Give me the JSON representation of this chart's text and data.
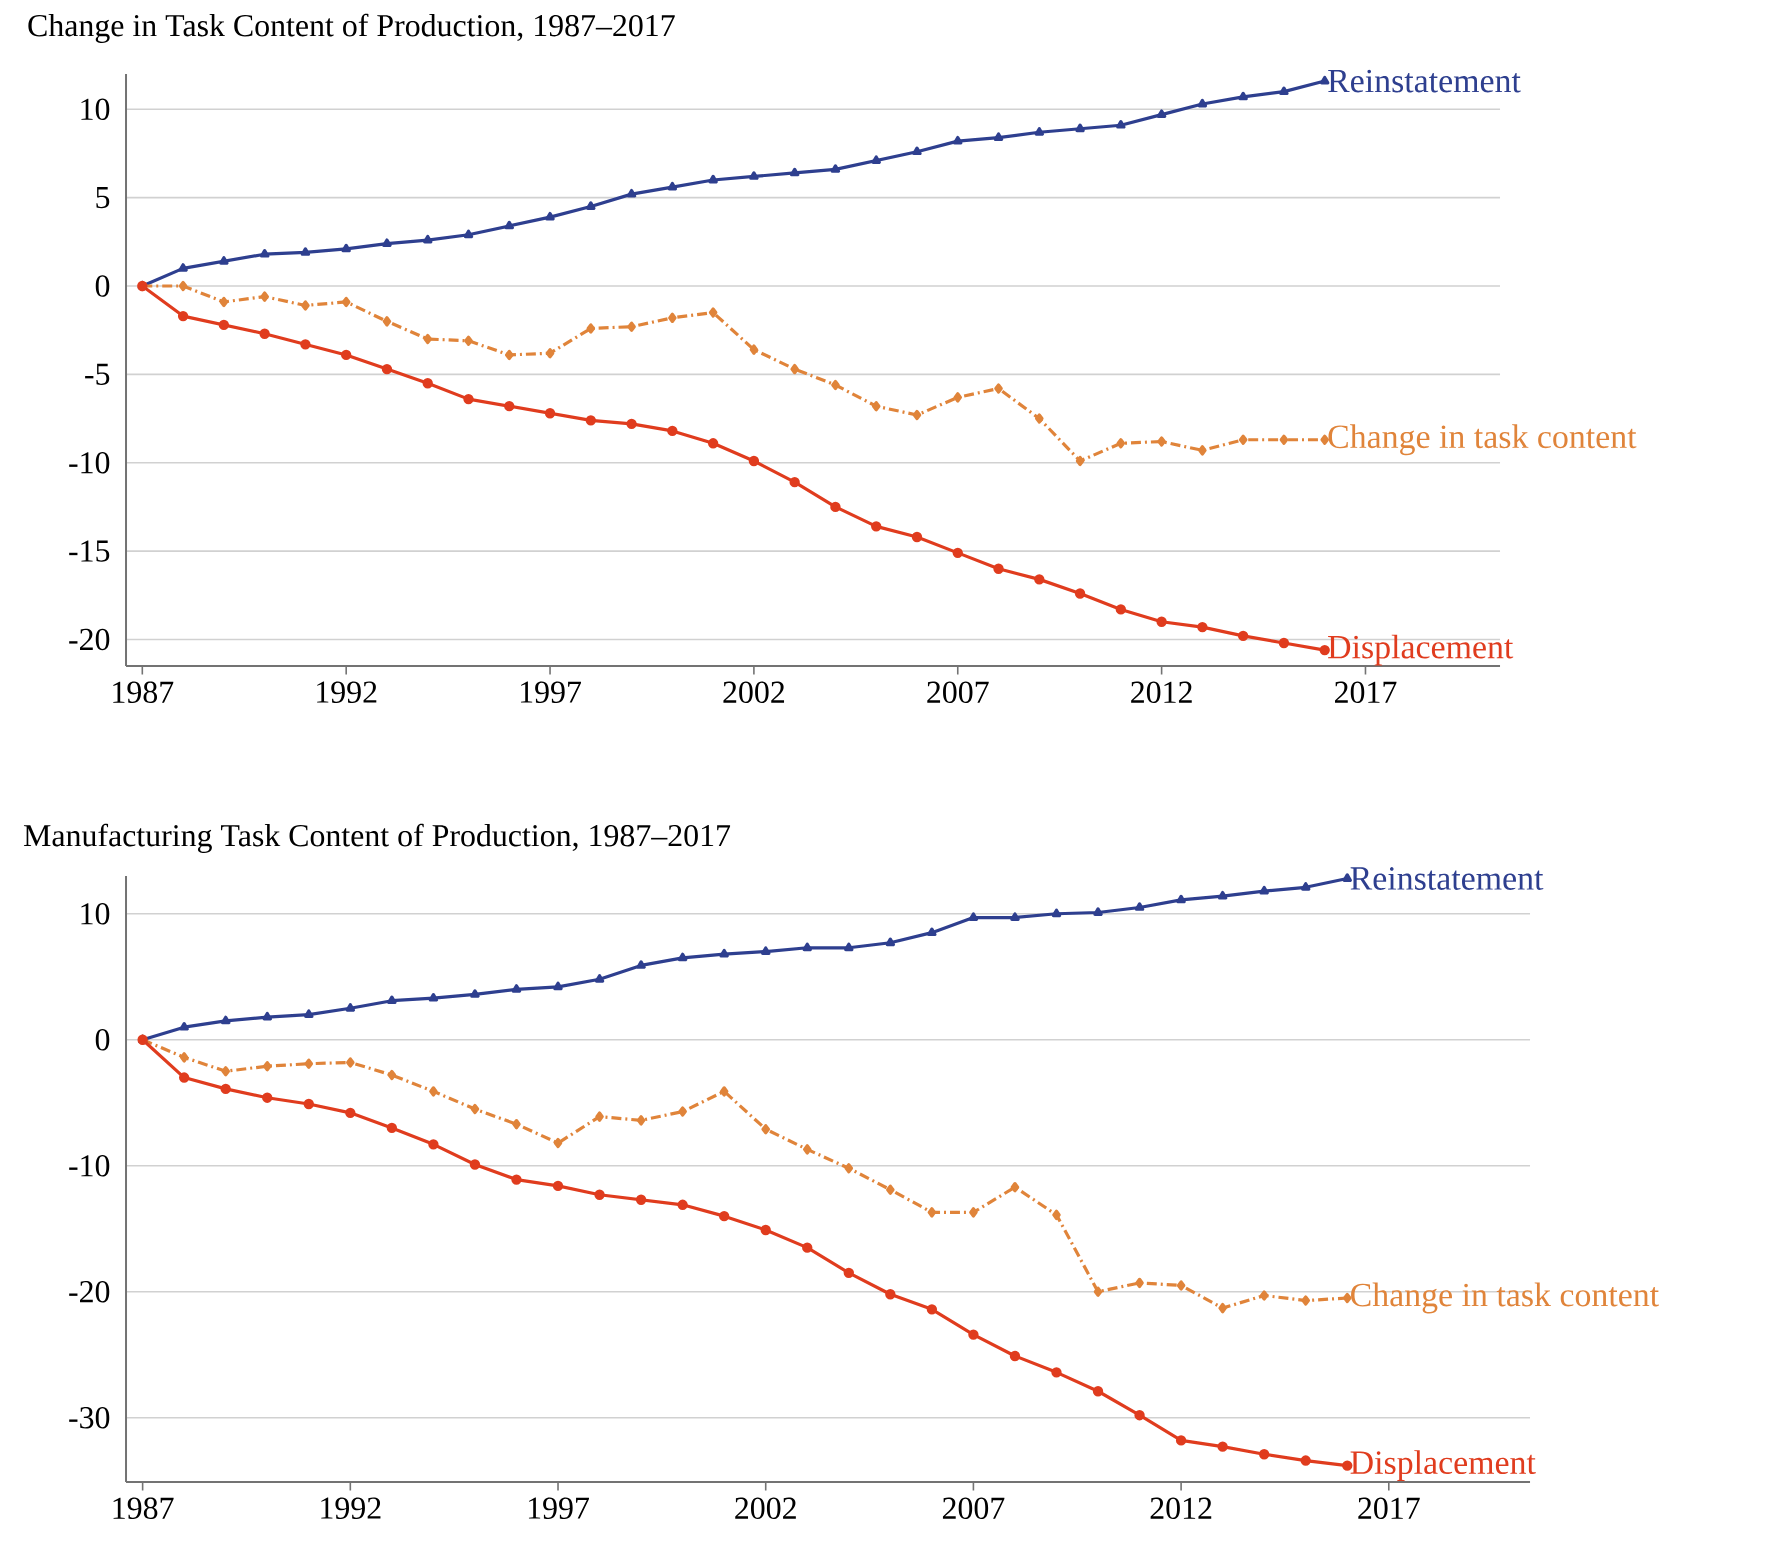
{
  "chart_data": [
    {
      "type": "line",
      "title": "Change in Task Content of Production, 1987–2017",
      "x": [
        1987,
        1988,
        1989,
        1990,
        1991,
        1992,
        1993,
        1994,
        1995,
        1996,
        1997,
        1998,
        1999,
        2000,
        2001,
        2002,
        2003,
        2004,
        2005,
        2006,
        2007,
        2008,
        2009,
        2010,
        2011,
        2012,
        2013,
        2014,
        2015,
        2016
      ],
      "xlim": [
        1986.6,
        2020.3
      ],
      "ylim": [
        -21.5,
        12
      ],
      "xticks": [
        1987,
        1992,
        1997,
        2002,
        2007,
        2012,
        2017
      ],
      "yticks": [
        -20,
        -15,
        -10,
        -5,
        0,
        5,
        10
      ],
      "grid": "y",
      "series": [
        {
          "name": "Reinstatement",
          "color": "#2e3f8f",
          "marker": "triangle",
          "line_style": "solid",
          "values": [
            0,
            1.0,
            1.4,
            1.8,
            1.9,
            2.1,
            2.4,
            2.6,
            2.9,
            3.4,
            3.9,
            4.5,
            5.2,
            5.6,
            6.0,
            6.2,
            6.4,
            6.6,
            7.1,
            7.6,
            8.2,
            8.4,
            8.7,
            8.9,
            9.1,
            9.7,
            10.3,
            10.7,
            11.0,
            11.6
          ]
        },
        {
          "name": "Change in task content",
          "color": "#e0843a",
          "marker": "diamond",
          "line_style": "dashed",
          "values": [
            0,
            0,
            -0.9,
            -0.6,
            -1.1,
            -0.9,
            -2.0,
            -3.0,
            -3.1,
            -3.9,
            -3.8,
            -2.4,
            -2.3,
            -1.8,
            -1.5,
            -3.6,
            -4.7,
            -5.6,
            -6.8,
            -7.3,
            -6.3,
            -5.8,
            -7.5,
            -9.9,
            -8.9,
            -8.8,
            -9.3,
            -8.7,
            -8.7,
            -8.7
          ]
        },
        {
          "name": "Displacement",
          "color": "#e03c1e",
          "marker": "circle",
          "line_style": "solid",
          "values": [
            0,
            -1.7,
            -2.2,
            -2.7,
            -3.3,
            -3.9,
            -4.7,
            -5.5,
            -6.4,
            -6.8,
            -7.2,
            -7.6,
            -7.8,
            -8.2,
            -8.9,
            -9.9,
            -11.1,
            -12.5,
            -13.6,
            -14.2,
            -15.1,
            -16.0,
            -16.6,
            -17.4,
            -18.3,
            -19.0,
            -19.3,
            -19.8,
            -20.2,
            -20.6
          ]
        }
      ]
    },
    {
      "type": "line",
      "title": "Manufacturing Task Content of Production, 1987–2017",
      "x": [
        1987,
        1988,
        1989,
        1990,
        1991,
        1992,
        1993,
        1994,
        1995,
        1996,
        1997,
        1998,
        1999,
        2000,
        2001,
        2002,
        2003,
        2004,
        2005,
        2006,
        2007,
        2008,
        2009,
        2010,
        2011,
        2012,
        2013,
        2014,
        2015,
        2016
      ],
      "xlim": [
        1986.6,
        2020.4
      ],
      "ylim": [
        -35.1,
        13
      ],
      "xticks": [
        1987,
        1992,
        1997,
        2002,
        2007,
        2012,
        2017
      ],
      "yticks": [
        -30,
        -20,
        -10,
        0,
        10
      ],
      "grid": "y",
      "series": [
        {
          "name": "Reinstatement",
          "color": "#2e3f8f",
          "marker": "triangle",
          "line_style": "solid",
          "values": [
            0,
            1.0,
            1.5,
            1.8,
            2.0,
            2.5,
            3.1,
            3.3,
            3.6,
            4.0,
            4.2,
            4.8,
            5.9,
            6.5,
            6.8,
            7.0,
            7.3,
            7.3,
            7.7,
            8.5,
            9.7,
            9.7,
            10.0,
            10.1,
            10.5,
            11.1,
            11.4,
            11.8,
            12.1,
            12.8
          ]
        },
        {
          "name": "Change in task content",
          "color": "#e0843a",
          "marker": "diamond",
          "line_style": "dashed",
          "values": [
            0,
            -1.4,
            -2.5,
            -2.1,
            -1.9,
            -1.8,
            -2.8,
            -4.1,
            -5.5,
            -6.7,
            -8.2,
            -6.1,
            -6.4,
            -5.7,
            -4.1,
            -7.1,
            -8.7,
            -10.2,
            -11.9,
            -13.7,
            -13.7,
            -11.7,
            -13.9,
            -20.0,
            -19.3,
            -19.5,
            -21.3,
            -20.3,
            -20.7,
            -20.5
          ]
        },
        {
          "name": "Displacement",
          "color": "#e03c1e",
          "marker": "circle",
          "line_style": "solid",
          "values": [
            0,
            -3.0,
            -3.9,
            -4.6,
            -5.1,
            -5.8,
            -7.0,
            -8.3,
            -9.9,
            -11.1,
            -11.6,
            -12.3,
            -12.7,
            -13.1,
            -14.0,
            -15.1,
            -16.5,
            -18.5,
            -20.2,
            -21.4,
            -23.4,
            -25.1,
            -26.4,
            -27.9,
            -29.8,
            -31.8,
            -32.3,
            -32.9,
            -33.4,
            -33.8
          ]
        }
      ]
    }
  ]
}
